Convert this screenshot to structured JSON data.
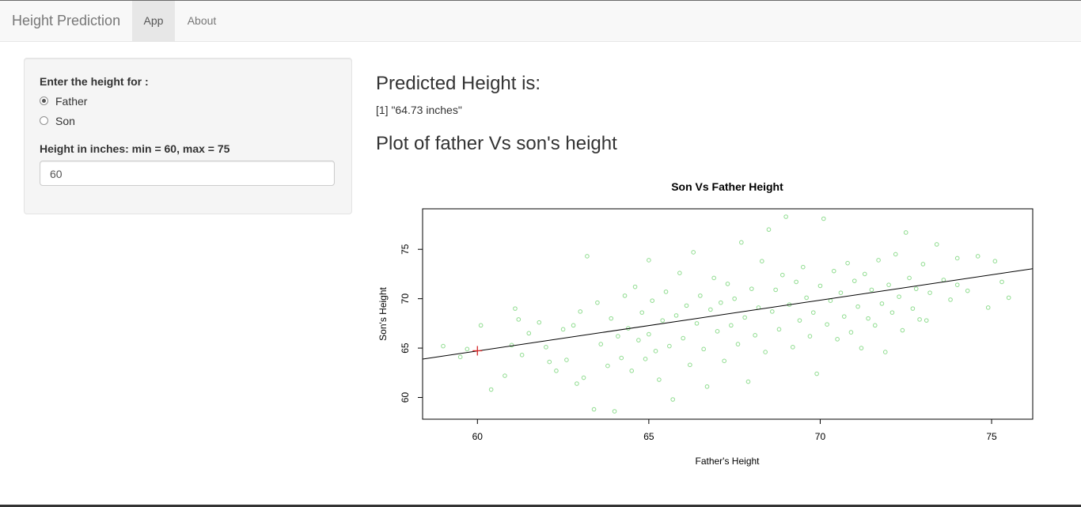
{
  "navbar": {
    "brand": "Height Prediction",
    "tabs": [
      {
        "label": "App",
        "active": true
      },
      {
        "label": "About",
        "active": false
      }
    ]
  },
  "sidebar": {
    "radio_label": "Enter the height for :",
    "options": [
      {
        "label": "Father",
        "checked": true
      },
      {
        "label": "Son",
        "checked": false
      }
    ],
    "input_label": "Height in inches: min = 60, max = 75",
    "input_value": "60"
  },
  "main": {
    "prediction_heading": "Predicted Height is:",
    "prediction_output": "[1] \"64.73 inches\"",
    "plot_heading": "Plot of father Vs son's height"
  },
  "colors": {
    "points": "#8fdc8f",
    "regression_line": "#000000",
    "prediction_marker": "#d62728"
  },
  "chart_data": {
    "type": "scatter",
    "title": "Son Vs Father Height",
    "xlabel": "Father's Height",
    "ylabel": "Son's Height",
    "xlim": [
      58.4,
      76.2
    ],
    "ylim": [
      57.8,
      79.1
    ],
    "xticks": [
      60,
      65,
      70,
      75
    ],
    "yticks": [
      60,
      65,
      70,
      75
    ],
    "regression_line": {
      "intercept": 33.87,
      "slope": 0.514
    },
    "prediction_point": {
      "x": 60,
      "y": 64.73
    },
    "points_note": "about 1078 father/son pairs spread from x 59 to 75.5 and y 58.5 to 78.5",
    "points": [
      [
        59.0,
        65.2
      ],
      [
        59.5,
        64.1
      ],
      [
        59.7,
        64.9
      ],
      [
        60.1,
        67.3
      ],
      [
        60.4,
        60.8
      ],
      [
        60.8,
        62.2
      ],
      [
        61.0,
        65.3
      ],
      [
        61.1,
        69.0
      ],
      [
        61.2,
        67.9
      ],
      [
        61.3,
        64.3
      ],
      [
        61.5,
        66.5
      ],
      [
        61.8,
        67.6
      ],
      [
        62.0,
        65.1
      ],
      [
        62.1,
        63.6
      ],
      [
        62.3,
        62.7
      ],
      [
        62.5,
        66.9
      ],
      [
        62.6,
        63.8
      ],
      [
        62.8,
        67.3
      ],
      [
        62.9,
        61.4
      ],
      [
        63.0,
        68.7
      ],
      [
        63.1,
        62.0
      ],
      [
        63.2,
        74.3
      ],
      [
        63.4,
        58.8
      ],
      [
        63.5,
        69.6
      ],
      [
        63.6,
        65.4
      ],
      [
        63.8,
        63.2
      ],
      [
        63.9,
        68.0
      ],
      [
        64.0,
        58.6
      ],
      [
        64.1,
        66.2
      ],
      [
        64.2,
        64.0
      ],
      [
        64.3,
        70.3
      ],
      [
        64.4,
        67.0
      ],
      [
        64.5,
        62.7
      ],
      [
        64.6,
        71.2
      ],
      [
        64.7,
        65.8
      ],
      [
        64.8,
        68.6
      ],
      [
        64.9,
        63.9
      ],
      [
        65.0,
        73.9
      ],
      [
        65.0,
        66.4
      ],
      [
        65.1,
        69.8
      ],
      [
        65.2,
        64.7
      ],
      [
        65.3,
        61.8
      ],
      [
        65.4,
        67.8
      ],
      [
        65.5,
        70.7
      ],
      [
        65.6,
        65.2
      ],
      [
        65.7,
        59.8
      ],
      [
        65.8,
        68.3
      ],
      [
        65.9,
        72.6
      ],
      [
        66.0,
        66.0
      ],
      [
        66.1,
        69.3
      ],
      [
        66.2,
        63.3
      ],
      [
        66.3,
        74.7
      ],
      [
        66.4,
        67.5
      ],
      [
        66.5,
        70.3
      ],
      [
        66.6,
        64.9
      ],
      [
        66.7,
        61.1
      ],
      [
        66.8,
        68.9
      ],
      [
        66.9,
        72.1
      ],
      [
        67.0,
        66.7
      ],
      [
        67.1,
        69.6
      ],
      [
        67.2,
        63.7
      ],
      [
        67.3,
        71.5
      ],
      [
        67.4,
        67.3
      ],
      [
        67.5,
        70.0
      ],
      [
        67.6,
        65.4
      ],
      [
        67.7,
        75.7
      ],
      [
        67.8,
        68.1
      ],
      [
        67.9,
        61.6
      ],
      [
        68.0,
        71.0
      ],
      [
        68.1,
        66.3
      ],
      [
        68.2,
        69.1
      ],
      [
        68.3,
        73.8
      ],
      [
        68.4,
        64.6
      ],
      [
        68.5,
        77.0
      ],
      [
        68.6,
        68.7
      ],
      [
        68.7,
        70.9
      ],
      [
        68.8,
        66.9
      ],
      [
        68.9,
        72.4
      ],
      [
        69.0,
        78.3
      ],
      [
        69.1,
        69.4
      ],
      [
        69.2,
        65.1
      ],
      [
        69.3,
        71.7
      ],
      [
        69.4,
        67.8
      ],
      [
        69.5,
        73.2
      ],
      [
        69.6,
        70.1
      ],
      [
        69.7,
        66.2
      ],
      [
        69.8,
        68.6
      ],
      [
        69.9,
        62.4
      ],
      [
        70.0,
        71.3
      ],
      [
        70.1,
        78.1
      ],
      [
        70.2,
        67.4
      ],
      [
        70.3,
        69.8
      ],
      [
        70.4,
        72.8
      ],
      [
        70.5,
        65.9
      ],
      [
        70.6,
        70.6
      ],
      [
        70.7,
        68.2
      ],
      [
        70.8,
        73.6
      ],
      [
        70.9,
        66.6
      ],
      [
        71.0,
        71.8
      ],
      [
        71.1,
        69.2
      ],
      [
        71.2,
        65.0
      ],
      [
        71.3,
        72.5
      ],
      [
        71.4,
        68.0
      ],
      [
        71.5,
        70.9
      ],
      [
        71.6,
        67.3
      ],
      [
        71.7,
        73.9
      ],
      [
        71.8,
        69.5
      ],
      [
        71.9,
        64.6
      ],
      [
        72.0,
        71.4
      ],
      [
        72.1,
        68.6
      ],
      [
        72.2,
        74.5
      ],
      [
        72.3,
        70.2
      ],
      [
        72.4,
        66.8
      ],
      [
        72.5,
        76.7
      ],
      [
        72.6,
        72.1
      ],
      [
        72.7,
        69.0
      ],
      [
        72.8,
        71.0
      ],
      [
        72.9,
        67.9
      ],
      [
        73.0,
        73.5
      ],
      [
        73.2,
        70.6
      ],
      [
        73.4,
        75.5
      ],
      [
        73.6,
        71.9
      ],
      [
        73.8,
        69.9
      ],
      [
        74.0,
        74.1
      ],
      [
        74.3,
        70.8
      ],
      [
        74.6,
        74.3
      ],
      [
        74.9,
        69.1
      ],
      [
        75.1,
        73.8
      ],
      [
        75.3,
        71.7
      ],
      [
        75.5,
        70.1
      ],
      [
        73.1,
        67.8
      ],
      [
        74.0,
        71.4
      ]
    ]
  }
}
